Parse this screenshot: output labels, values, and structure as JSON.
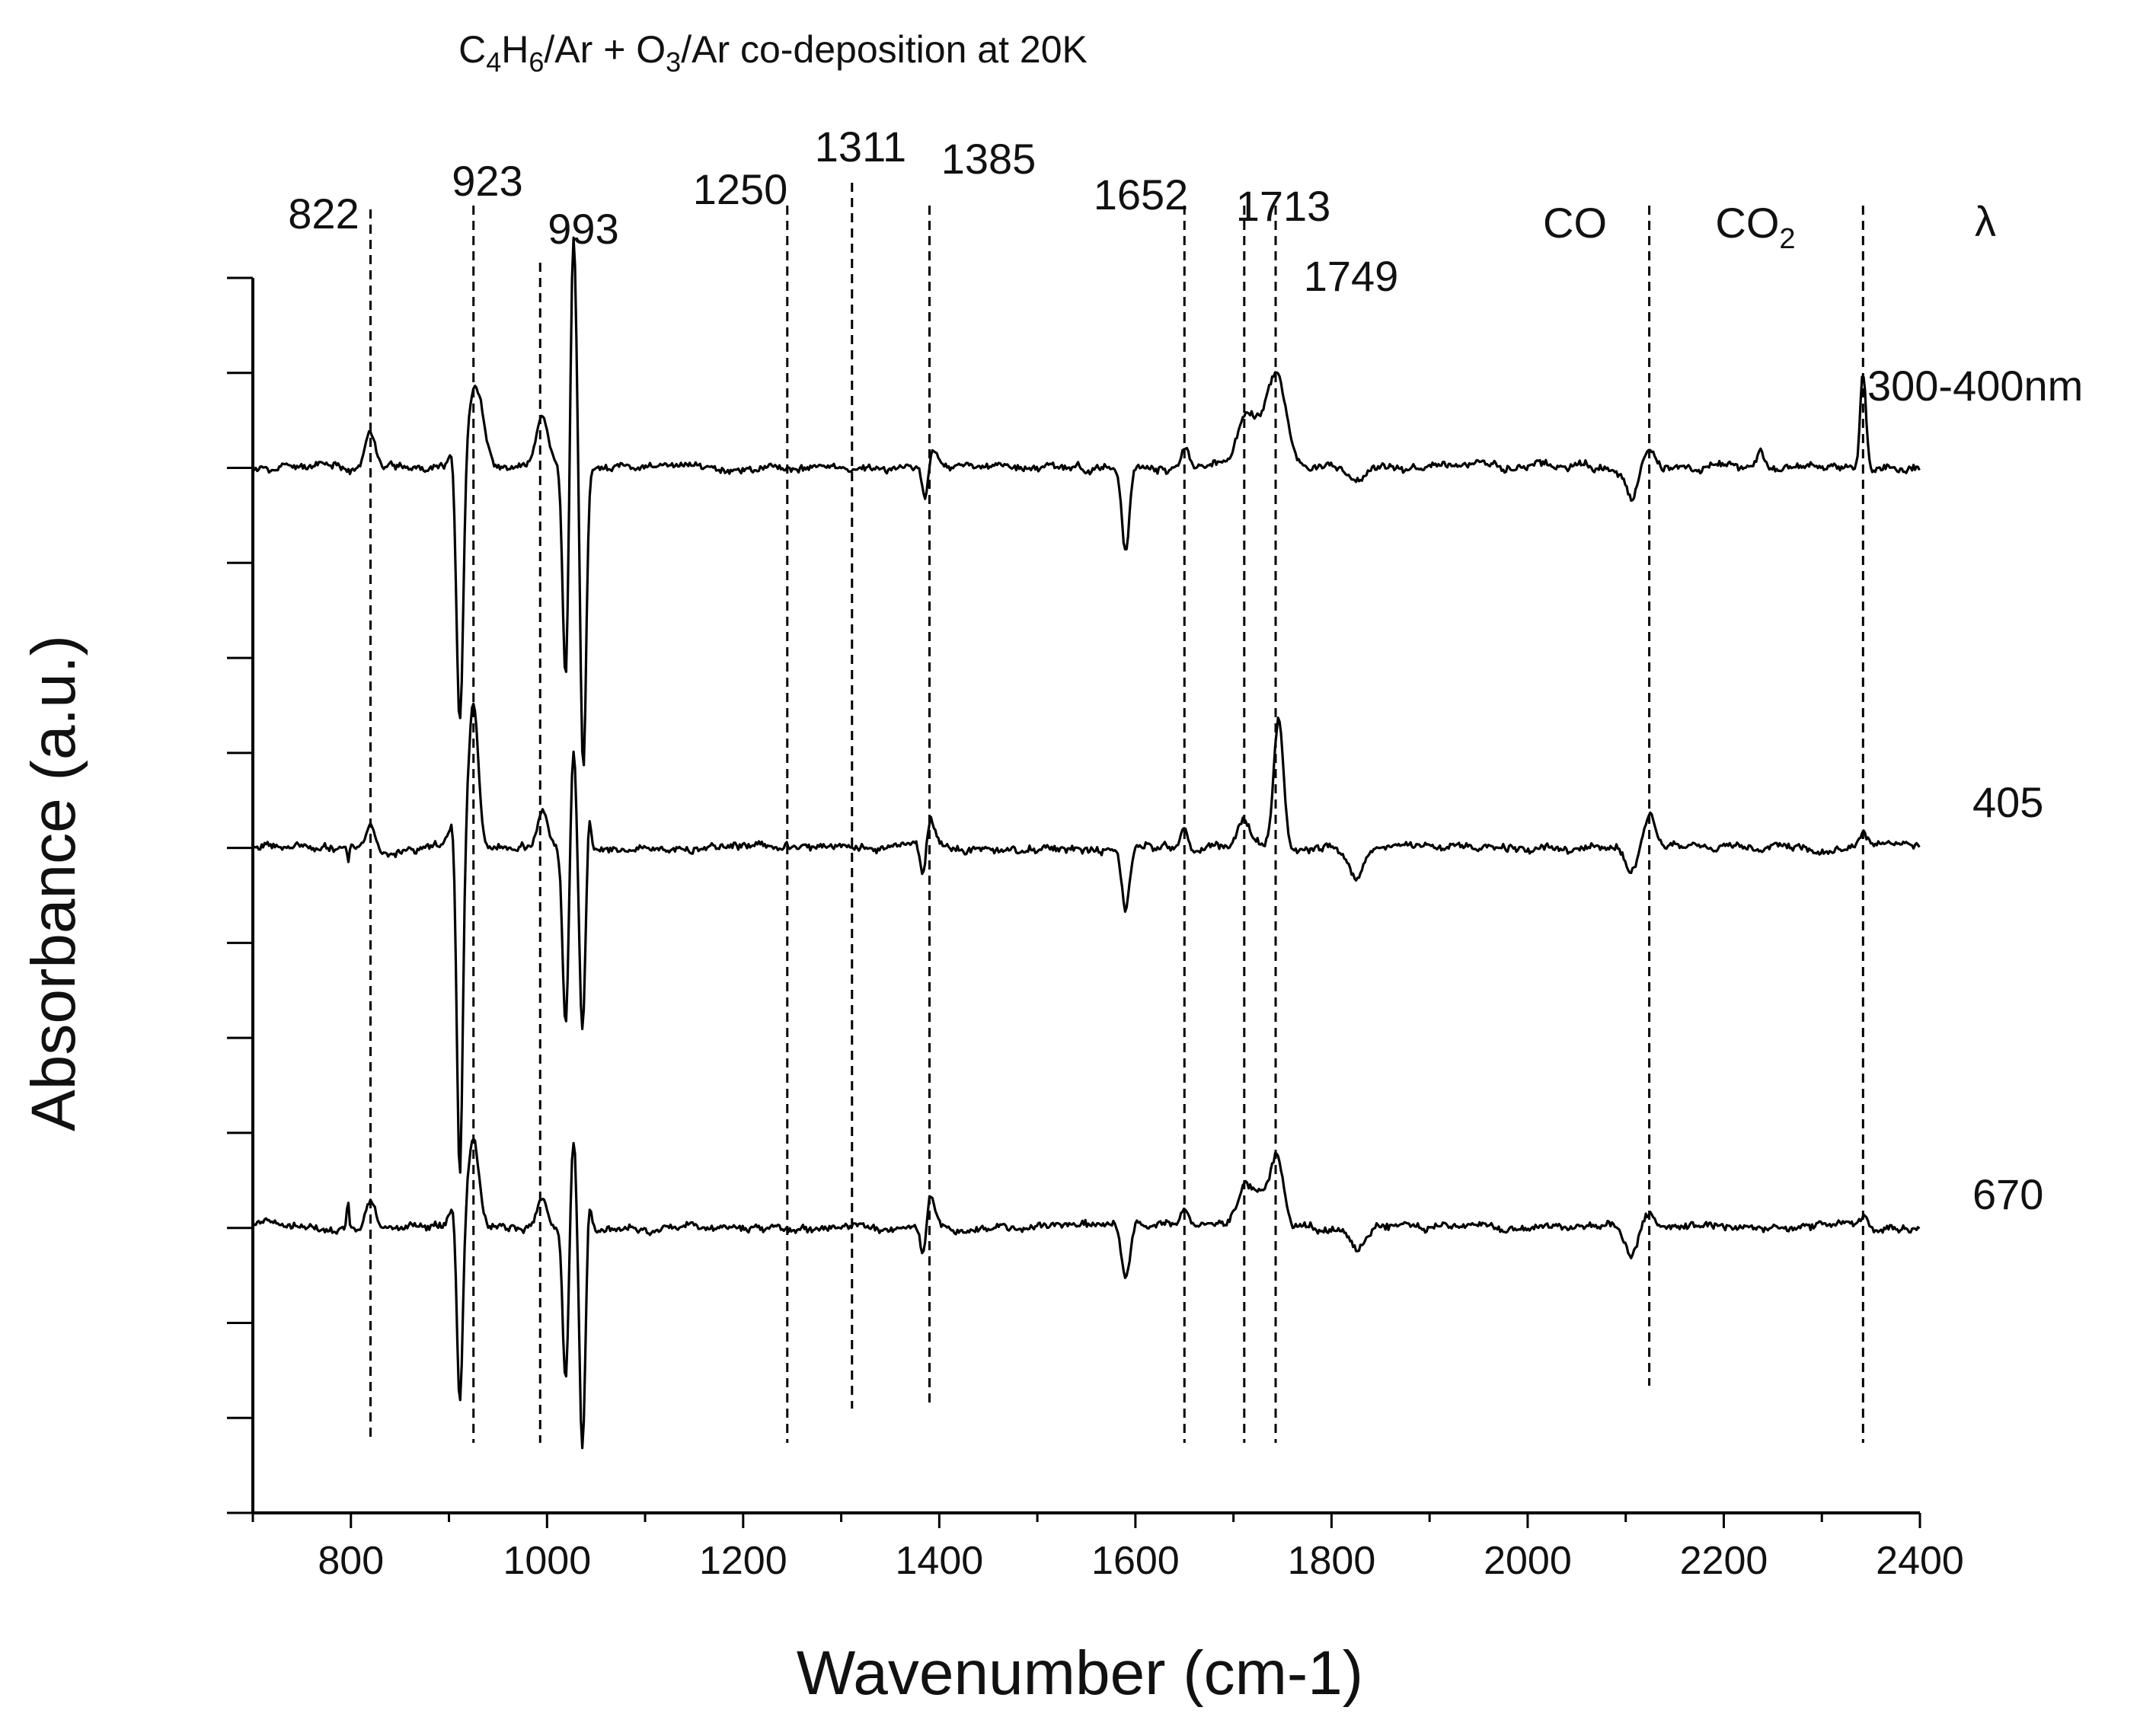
{
  "chart_data": {
    "type": "line",
    "title": {
      "segments": [
        {
          "text": "C",
          "sub": false
        },
        {
          "text": "4",
          "sub": true
        },
        {
          "text": "H",
          "sub": false
        },
        {
          "text": "6",
          "sub": true
        },
        {
          "text": "/Ar + O",
          "sub": false
        },
        {
          "text": "3",
          "sub": true
        },
        {
          "text": "/Ar co-deposition at 20K",
          "sub": false
        }
      ]
    },
    "xlabel": "Wavenumber (cm-1)",
    "ylabel": "Absorbance (a.u.)",
    "xlim": [
      700,
      2400
    ],
    "ylim": [
      0,
      13
    ],
    "x_ticks": [
      800,
      1000,
      1200,
      1400,
      1600,
      1800,
      2000,
      2200,
      2400
    ],
    "x_minor_step": 100,
    "y_tick_step": 1,
    "grid": false,
    "legend_header": "λ",
    "series": [
      {
        "name": "300-400nm",
        "baseline": 11.0,
        "noise": 0.05,
        "seed": 11
      },
      {
        "name": "405",
        "baseline": 7.0,
        "noise": 0.05,
        "seed": 23
      },
      {
        "name": "670",
        "baseline": 3.0,
        "noise": 0.05,
        "seed": 37
      }
    ],
    "peaks": {
      "300-400nm": [
        [
          820,
          0.4,
          5
        ],
        [
          905,
          0.3,
          4
        ],
        [
          911,
          -2.9,
          3.5
        ],
        [
          927,
          0.9,
          8
        ],
        [
          995,
          0.5,
          6
        ],
        [
          1019,
          -2.3,
          3
        ],
        [
          1027,
          2.5,
          3
        ],
        [
          1037,
          -3.2,
          3
        ],
        [
          1386,
          -0.35,
          3
        ],
        [
          1393,
          0.2,
          5
        ],
        [
          1590,
          -0.9,
          4
        ],
        [
          1651,
          0.25,
          4
        ],
        [
          1710,
          0.3,
          8
        ],
        [
          1745,
          0.8,
          10
        ],
        [
          1725,
          0.4,
          15
        ],
        [
          1826,
          -0.15,
          10
        ],
        [
          2106,
          -0.3,
          6
        ],
        [
          2123,
          0.2,
          6
        ],
        [
          2342,
          1.0,
          3
        ],
        [
          2238,
          0.15,
          3
        ]
      ],
      "405": [
        [
          820,
          0.25,
          5
        ],
        [
          797,
          -0.2,
          1
        ],
        [
          905,
          0.3,
          4
        ],
        [
          911,
          -3.6,
          3
        ],
        [
          925,
          1.5,
          5
        ],
        [
          995,
          0.4,
          5
        ],
        [
          1019,
          -1.9,
          3
        ],
        [
          1027,
          1.1,
          3
        ],
        [
          1036,
          -1.9,
          3
        ],
        [
          1043,
          0.4,
          2
        ],
        [
          1384,
          -0.45,
          3
        ],
        [
          1390,
          0.3,
          5
        ],
        [
          1590,
          -0.65,
          4
        ],
        [
          1650,
          0.25,
          4
        ],
        [
          1710,
          0.3,
          6
        ],
        [
          1746,
          1.35,
          5
        ],
        [
          1825,
          -0.3,
          7
        ],
        [
          2106,
          -0.25,
          6
        ],
        [
          2124,
          0.35,
          6
        ],
        [
          2342,
          0.1,
          4
        ]
      ],
      "670": [
        [
          797,
          -0.7,
          1
        ],
        [
          797,
          1.0,
          1
        ],
        [
          820,
          0.3,
          5
        ],
        [
          905,
          0.3,
          4
        ],
        [
          911,
          -2.0,
          3
        ],
        [
          925,
          0.95,
          6
        ],
        [
          995,
          0.3,
          5
        ],
        [
          1019,
          -1.6,
          3
        ],
        [
          1027,
          1.0,
          3
        ],
        [
          1036,
          -2.3,
          3
        ],
        [
          1043,
          0.35,
          2
        ],
        [
          1384,
          -0.35,
          3
        ],
        [
          1391,
          0.35,
          4
        ],
        [
          1590,
          -0.55,
          4
        ],
        [
          1650,
          0.2,
          4
        ],
        [
          1710,
          0.25,
          6
        ],
        [
          1745,
          0.6,
          6
        ],
        [
          1725,
          0.3,
          15
        ],
        [
          1825,
          -0.2,
          8
        ],
        [
          2106,
          -0.25,
          6
        ],
        [
          2124,
          0.15,
          6
        ],
        [
          2342,
          0.1,
          4
        ]
      ]
    },
    "ref_lines": [
      {
        "x": 820,
        "label": "822",
        "level": 1
      },
      {
        "x": 925,
        "label": "923",
        "level": 0
      },
      {
        "x": 993,
        "label": "993",
        "level": 2
      },
      {
        "x": 1245,
        "label": "1250",
        "level": 0
      },
      {
        "x": 1311,
        "label": "1311",
        "level": 3
      },
      {
        "x": 1390,
        "label": "1385",
        "level": 0
      },
      {
        "x": 1650,
        "label": "1652",
        "level": 0
      },
      {
        "x": 1711,
        "label": "1713",
        "level": 0
      },
      {
        "x": 1743,
        "label": "1749",
        "level": 0
      },
      {
        "x": 2124,
        "label": "CO",
        "level": 0
      },
      {
        "x": 2342,
        "label": "CO₂",
        "level": 0
      }
    ],
    "annotations": {
      "label_822": "822",
      "label_923": "923",
      "label_993": "993",
      "label_1250": "1250",
      "label_1311": "1311",
      "label_1385": "1385",
      "label_1652": "1652",
      "label_1713": "1713",
      "label_1749": "1749",
      "label_CO": "CO",
      "label_CO2_main": "CO",
      "label_CO2_sub": "2",
      "lambda": "λ",
      "series_label_1": "300-400nm",
      "series_label_2": "405",
      "series_label_3": "670"
    }
  }
}
